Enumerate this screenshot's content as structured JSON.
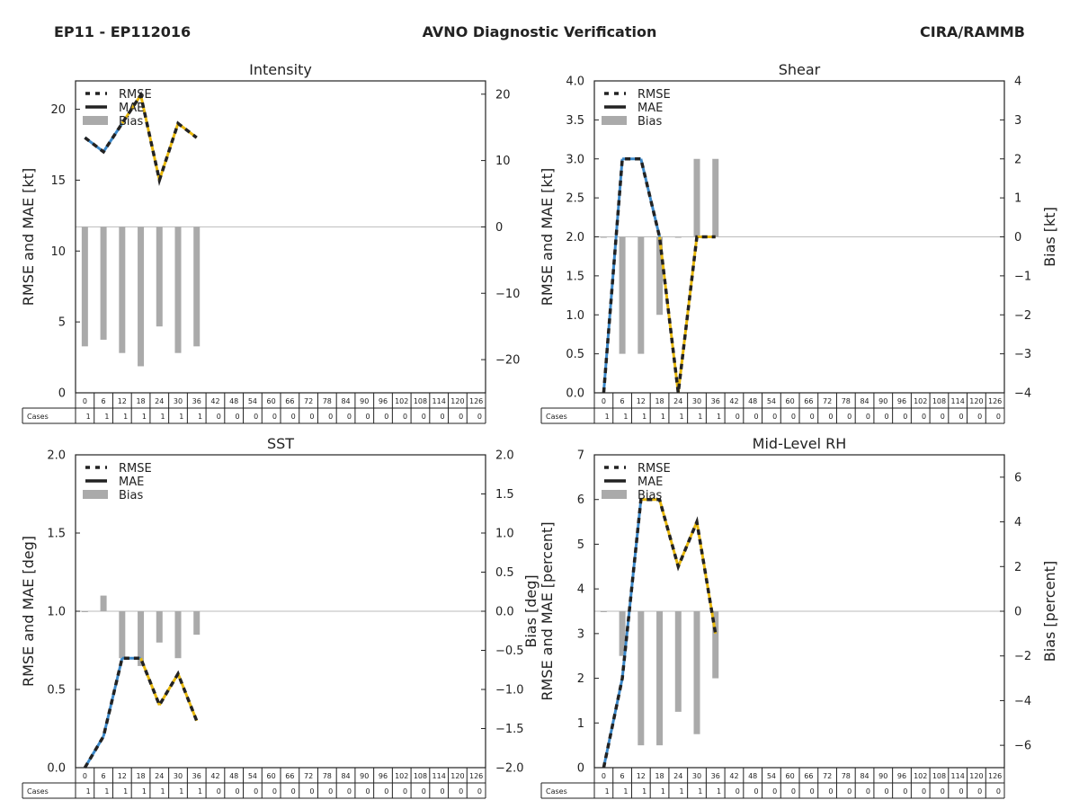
{
  "header": {
    "left": "EP11 - EP112016",
    "center": "AVNO Diagnostic Verification",
    "right": "CIRA/RAMMB"
  },
  "legend": {
    "rmse": "RMSE",
    "mae": "MAE",
    "bias": "Bias"
  },
  "colors": {
    "line": "#222222",
    "blue": "#3a87c8",
    "yellow": "#e8b80c",
    "bias": "#aaaaaa",
    "zero": "#bbbbbb"
  },
  "table": {
    "label": "Cases",
    "hours": [
      "0",
      "6",
      "12",
      "18",
      "24",
      "30",
      "36",
      "42",
      "48",
      "54",
      "60",
      "66",
      "72",
      "78",
      "84",
      "90",
      "96",
      "102",
      "108",
      "114",
      "120",
      "126"
    ],
    "cases": [
      1,
      1,
      1,
      1,
      1,
      1,
      1,
      0,
      0,
      0,
      0,
      0,
      0,
      0,
      0,
      0,
      0,
      0,
      0,
      0,
      0,
      0
    ]
  },
  "chart_data": [
    {
      "type": "line",
      "title": "Intensity",
      "ylabel": "RMSE and MAE [kt]",
      "y2label": "",
      "ylim": [
        0,
        22
      ],
      "yticks": [
        0,
        5,
        10,
        15,
        20
      ],
      "y2lim": [
        -25,
        22
      ],
      "y2ticks": [
        -20,
        -10,
        0,
        10,
        20
      ],
      "rmse": [
        18,
        17,
        19,
        21,
        15,
        19,
        18
      ],
      "mae": [
        18,
        17,
        19,
        21,
        15,
        19,
        18
      ],
      "bias": [
        -18,
        -17,
        -19,
        -21,
        -15,
        -19,
        -18
      ],
      "blue_until": 2
    },
    {
      "type": "line",
      "title": "Shear",
      "ylabel": "RMSE and MAE [kt]",
      "y2label": "Bias [kt]",
      "ylim": [
        0,
        4
      ],
      "yticks": [
        "0.0",
        "0.5",
        "1.0",
        "1.5",
        "2.0",
        "2.5",
        "3.0",
        "3.5",
        "4.0"
      ],
      "y2lim": [
        -4,
        4
      ],
      "y2ticks": [
        -4,
        -3,
        -2,
        -1,
        0,
        1,
        2,
        3,
        4
      ],
      "rmse": [
        0,
        3,
        3,
        2,
        0,
        2,
        2
      ],
      "mae": [
        0,
        3,
        3,
        2,
        0,
        2,
        2
      ],
      "bias": [
        0,
        -3,
        -3,
        -2,
        0,
        2,
        2
      ],
      "blue_until": 3
    },
    {
      "type": "line",
      "title": "SST",
      "ylabel": "RMSE and MAE [deg]",
      "y2label": "Bias [deg]",
      "ylim": [
        0,
        2
      ],
      "yticks": [
        "0.0",
        "0.5",
        "1.0",
        "1.5",
        "2.0"
      ],
      "y2lim": [
        -2,
        2
      ],
      "y2ticks": [
        "-2.0",
        "-1.5",
        "-1.0",
        "-0.5",
        "0.0",
        "0.5",
        "1.0",
        "1.5",
        "2.0"
      ],
      "rmse": [
        0,
        0.2,
        0.7,
        0.7,
        0.4,
        0.6,
        0.3
      ],
      "mae": [
        0,
        0.2,
        0.7,
        0.7,
        0.4,
        0.6,
        0.3
      ],
      "bias": [
        0,
        0.2,
        -0.6,
        -0.7,
        -0.4,
        -0.6,
        -0.3
      ],
      "blue_until": 3
    },
    {
      "type": "line",
      "title": "Mid-Level RH",
      "ylabel": "RMSE and MAE [percent]",
      "y2label": "Bias [percent]",
      "ylim": [
        0,
        7
      ],
      "yticks": [
        0,
        1,
        2,
        3,
        4,
        5,
        6,
        7
      ],
      "y2lim": [
        -7,
        7
      ],
      "y2ticks": [
        -6,
        -4,
        -2,
        0,
        2,
        4,
        6
      ],
      "rmse": [
        0,
        2,
        6,
        6,
        4.5,
        5.5,
        3
      ],
      "mae": [
        0,
        2,
        6,
        6,
        4.5,
        5.5,
        3
      ],
      "bias": [
        0,
        -2,
        -6,
        -6,
        -4.5,
        -5.5,
        -3
      ],
      "blue_until": 2
    }
  ]
}
